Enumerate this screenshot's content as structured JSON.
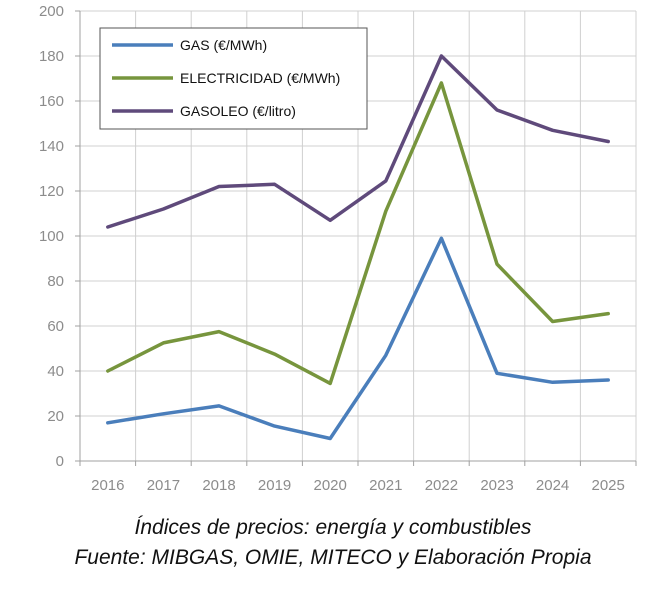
{
  "chart_data": {
    "type": "line",
    "categories": [
      "2016",
      "2017",
      "2018",
      "2019",
      "2020",
      "2021",
      "2022",
      "2023",
      "2024",
      "2025"
    ],
    "series": [
      {
        "name": "GAS (€/MWh)",
        "color": "#4a7ebb",
        "values": [
          17,
          21,
          24.5,
          15.5,
          10,
          47,
          99,
          39,
          35,
          36
        ]
      },
      {
        "name": "ELECTRICIDAD (€/MWh)",
        "color": "#77953d",
        "values": [
          40,
          52.5,
          57.5,
          47.5,
          34.5,
          111,
          168,
          87.5,
          62,
          65.5
        ]
      },
      {
        "name": "GASOLEO (€/litro)",
        "color": "#5f4a7b",
        "values": [
          104,
          112,
          122,
          123,
          107,
          124.5,
          180,
          156,
          147,
          142
        ]
      }
    ],
    "yticks": [
      "0",
      "20",
      "40",
      "60",
      "80",
      "100",
      "120",
      "140",
      "160",
      "180",
      "200"
    ],
    "ylim": [
      0,
      200
    ],
    "grid": true,
    "legend_position": "top-left",
    "title": "",
    "xlabel": "",
    "ylabel": ""
  },
  "caption": {
    "line1": "Índices de precios: energía y combustibles",
    "line2": "Fuente: MIBGAS, OMIE, MITECO y Elaboración Propia"
  }
}
